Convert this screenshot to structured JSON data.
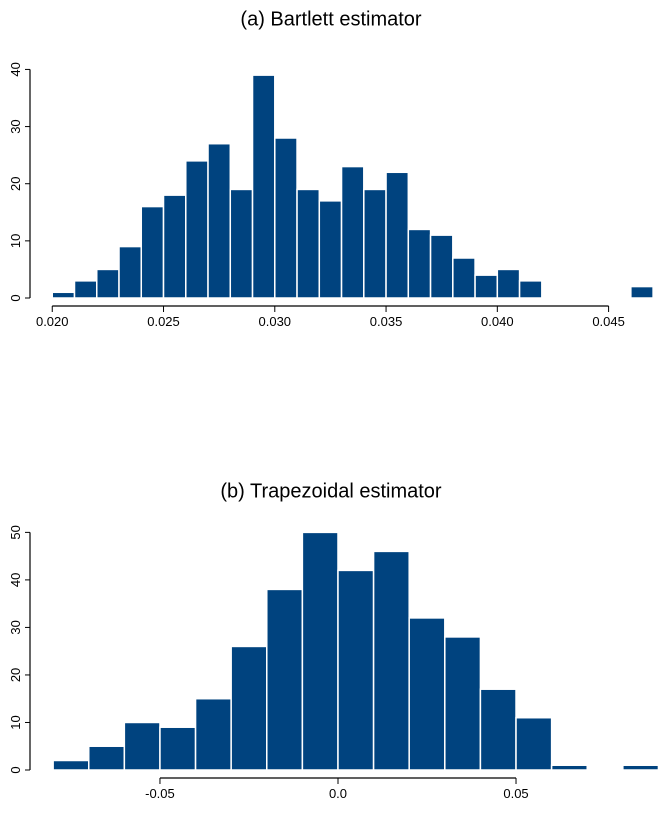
{
  "chart_data": [
    {
      "type": "histogram",
      "title": "(a) Bartlett estimator",
      "color": "#00437f",
      "bins": [
        0.02,
        0.021,
        0.022,
        0.023,
        0.024,
        0.025,
        0.026,
        0.027,
        0.028,
        0.029,
        0.03,
        0.031,
        0.032,
        0.033,
        0.034,
        0.035,
        0.036,
        0.037,
        0.038,
        0.039,
        0.04,
        0.041,
        0.042,
        0.043,
        0.044,
        0.045,
        0.046,
        0.047
      ],
      "values": [
        1,
        3,
        5,
        9,
        16,
        18,
        24,
        27,
        19,
        39,
        28,
        19,
        17,
        23,
        19,
        22,
        12,
        11,
        7,
        4,
        5,
        3,
        0,
        0,
        0,
        0,
        2
      ],
      "xlim": [
        0.019,
        0.0474
      ],
      "ylim": [
        0,
        42
      ],
      "xticks": [
        {
          "value": 0.02,
          "label": "0.020"
        },
        {
          "value": 0.025,
          "label": "0.025"
        },
        {
          "value": 0.03,
          "label": "0.030"
        },
        {
          "value": 0.035,
          "label": "0.035"
        },
        {
          "value": 0.04,
          "label": "0.040"
        },
        {
          "value": 0.045,
          "label": "0.045"
        }
      ],
      "yticks": [
        0,
        10,
        20,
        30,
        40
      ]
    },
    {
      "type": "histogram",
      "title": "(b) Trapezoidal estimator",
      "color": "#00437f",
      "bins": [
        -0.08,
        -0.07,
        -0.06,
        -0.05,
        -0.04,
        -0.03,
        -0.02,
        -0.01,
        0.0,
        0.01,
        0.02,
        0.03,
        0.04,
        0.05,
        0.06,
        0.07,
        0.08,
        0.09
      ],
      "values": [
        2,
        5,
        10,
        9,
        15,
        26,
        38,
        50,
        42,
        46,
        32,
        28,
        17,
        11,
        1,
        0,
        1
      ],
      "xlim": [
        -0.0865,
        0.091
      ],
      "ylim": [
        0,
        50.5
      ],
      "xticks": [
        -0.05,
        {
          "value": 0.0,
          "label": "0.0"
        },
        0.05
      ],
      "yticks": [
        0,
        10,
        20,
        30,
        40,
        50
      ]
    }
  ]
}
